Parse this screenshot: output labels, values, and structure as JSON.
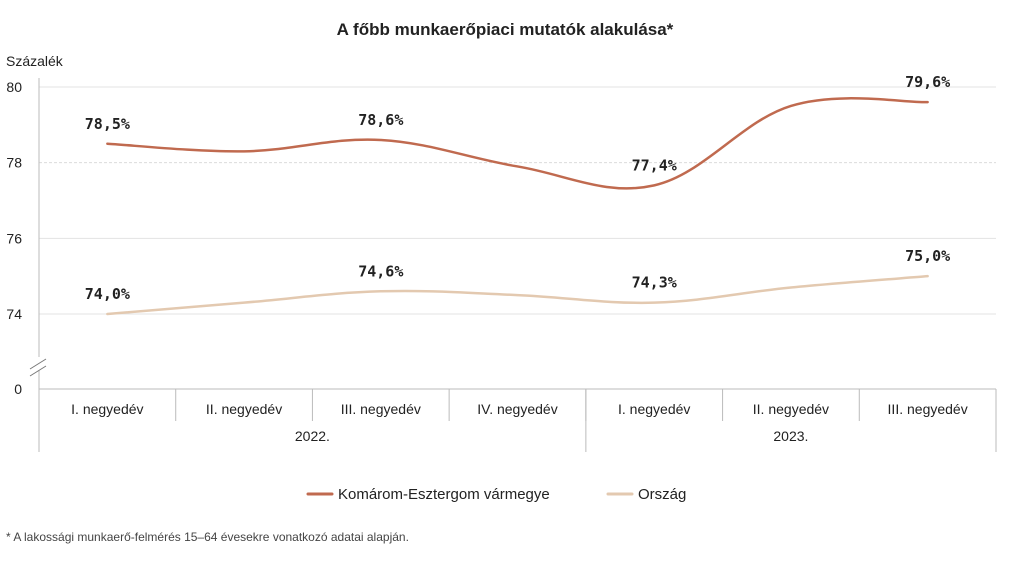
{
  "chart_data": {
    "type": "line",
    "title": "A főbb munkaerőpiaci mutatók alakulása*",
    "ylabel": "Százalék",
    "y_ticks": [
      "80",
      "78",
      "76",
      "74",
      "0"
    ],
    "y_range": [
      74,
      80
    ],
    "y_axis_break": true,
    "grid": true,
    "categories": [
      "I. negyedév",
      "II. negyedév",
      "III. negyedév",
      "IV. negyedév",
      "I. negyedév",
      "II. negyedév",
      "III. negyedév"
    ],
    "groups": [
      {
        "label": "2022.",
        "count": 4
      },
      {
        "label": "2023.",
        "count": 3
      }
    ],
    "series": [
      {
        "name": "Komárom-Esztergom vármegye",
        "color": "#c06a4f",
        "values": [
          78.5,
          78.3,
          78.6,
          77.9,
          77.4,
          79.5,
          79.6
        ],
        "labels": [
          "78,5%",
          "",
          "78,6%",
          "",
          "77,4%",
          "",
          "79,6%"
        ]
      },
      {
        "name": "Ország",
        "color": "#e3c9b0",
        "values": [
          74.0,
          74.3,
          74.6,
          74.5,
          74.3,
          74.7,
          75.0
        ],
        "labels": [
          "74,0%",
          "",
          "74,6%",
          "",
          "74,3%",
          "",
          "75,0%"
        ]
      }
    ],
    "legend_position": "bottom",
    "footnote": "* A lakossági munkaerő-felmérés 15–64 évesekre vonatkozó adatai alapján."
  }
}
